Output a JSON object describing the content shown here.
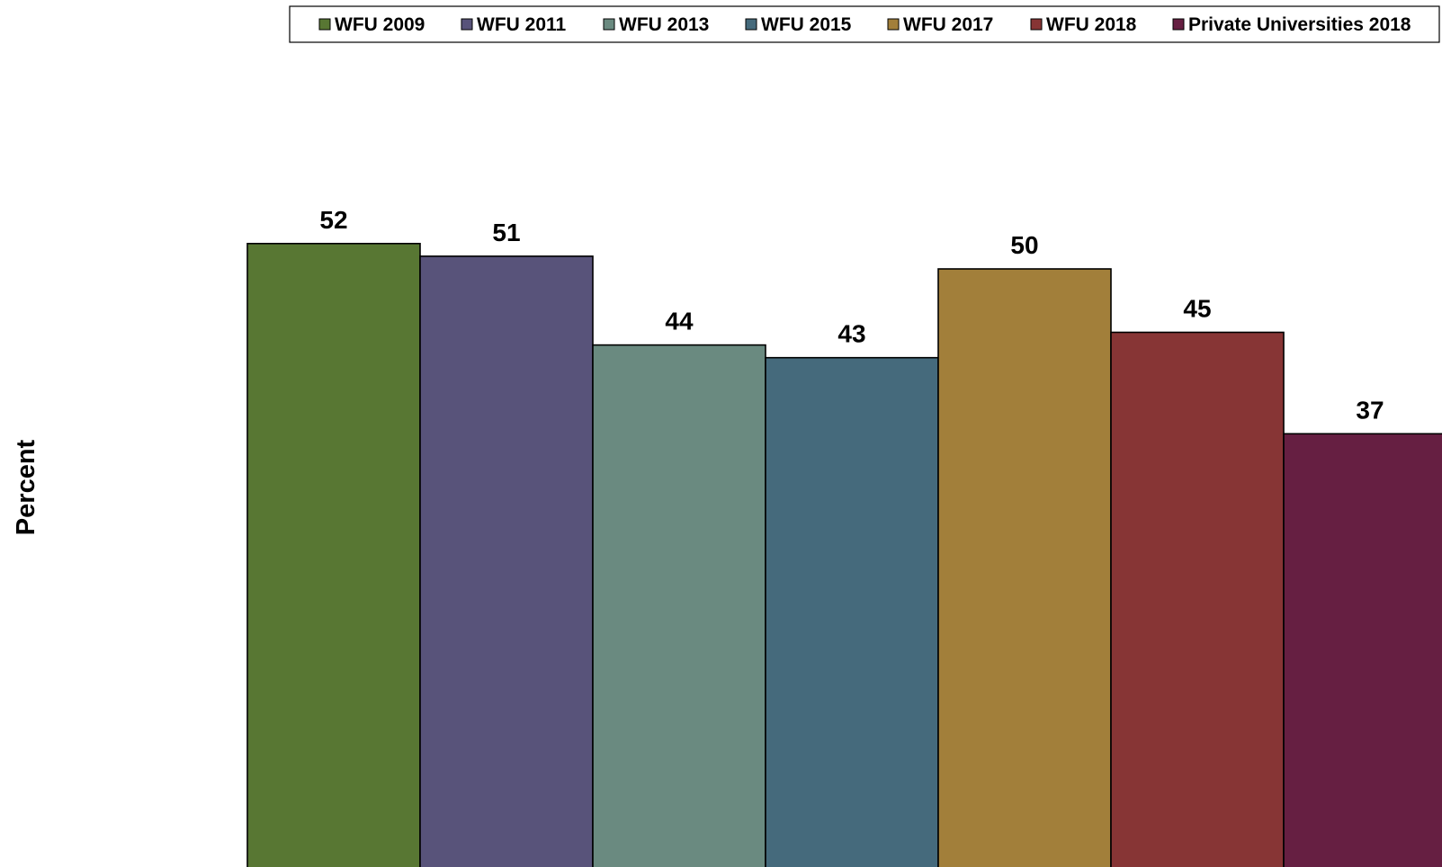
{
  "chart_data": {
    "type": "bar",
    "ylabel": "Percent",
    "ylim": [
      0,
      100
    ],
    "legend_position": "top",
    "series": [
      {
        "name": "WFU 2009",
        "value": 52,
        "color": "#587733"
      },
      {
        "name": "WFU 2011",
        "value": 51,
        "color": "#58537a"
      },
      {
        "name": "WFU 2013",
        "value": 44,
        "color": "#6a8a80"
      },
      {
        "name": "WFU 2015",
        "value": 43,
        "color": "#456a7c"
      },
      {
        "name": "WFU 2017",
        "value": 50,
        "color": "#a27f3a"
      },
      {
        "name": "WFU 2018",
        "value": 45,
        "color": "#873535"
      },
      {
        "name": "Private Universities 2018",
        "value": 37,
        "color": "#661f42"
      }
    ]
  }
}
